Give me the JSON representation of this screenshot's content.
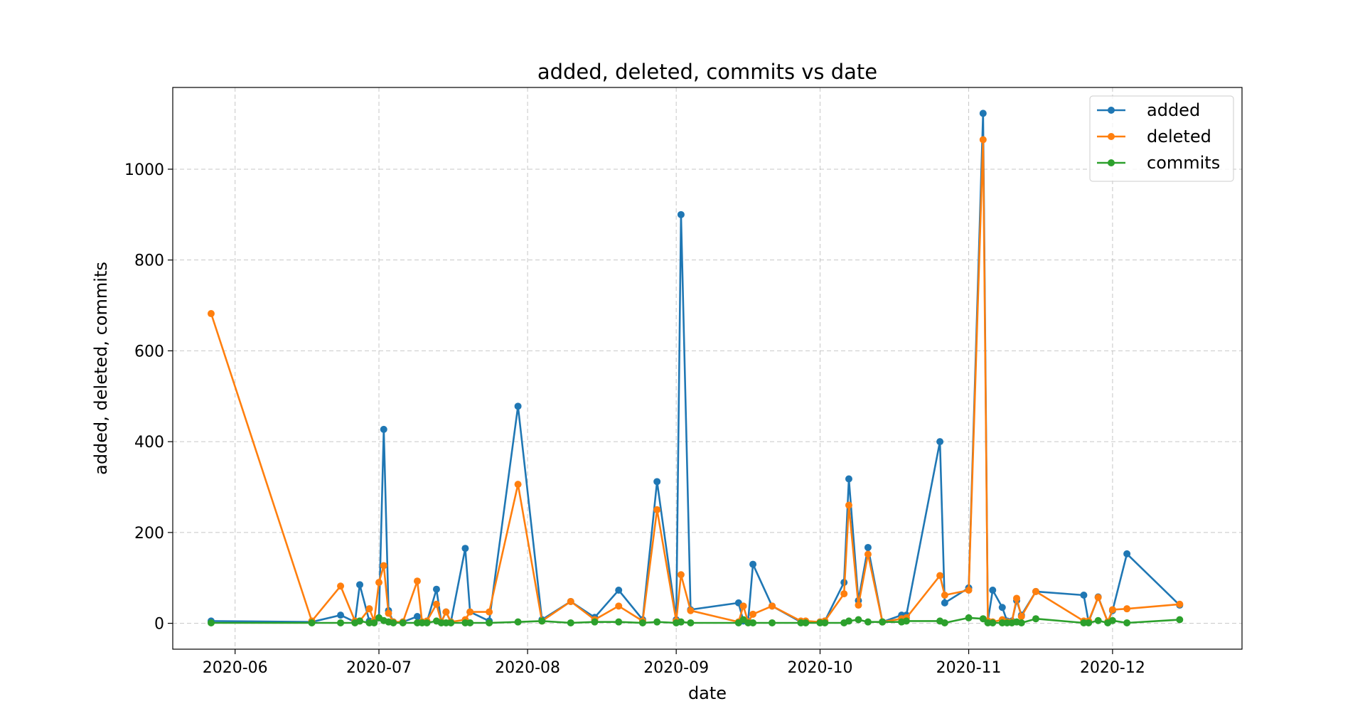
{
  "chart_data": {
    "type": "line",
    "title": "added, deleted, commits vs date",
    "xlabel": "date",
    "ylabel": "added, deleted, commits",
    "xlim": [
      "2020-05-19",
      "2020-12-28"
    ],
    "ylim": [
      -57,
      1180
    ],
    "x_ticks": [
      "2020-06-01",
      "2020-07-01",
      "2020-08-01",
      "2020-09-01",
      "2020-10-01",
      "2020-11-01",
      "2020-12-01"
    ],
    "x_tick_labels": [
      "2020-06",
      "2020-07",
      "2020-08",
      "2020-09",
      "2020-10",
      "2020-11",
      "2020-12"
    ],
    "y_ticks": [
      0,
      200,
      400,
      600,
      800,
      1000
    ],
    "grid": true,
    "legend_position": "upper right",
    "dates": [
      "2020-05-27",
      "2020-06-17",
      "2020-06-23",
      "2020-06-26",
      "2020-06-27",
      "2020-06-29",
      "2020-06-30",
      "2020-07-01",
      "2020-07-02",
      "2020-07-03",
      "2020-07-04",
      "2020-07-06",
      "2020-07-09",
      "2020-07-10",
      "2020-07-11",
      "2020-07-13",
      "2020-07-14",
      "2020-07-15",
      "2020-07-16",
      "2020-07-19",
      "2020-07-20",
      "2020-07-24",
      "2020-07-30",
      "2020-08-04",
      "2020-08-10",
      "2020-08-15",
      "2020-08-20",
      "2020-08-25",
      "2020-08-28",
      "2020-09-01",
      "2020-09-02",
      "2020-09-04",
      "2020-09-14",
      "2020-09-15",
      "2020-09-16",
      "2020-09-17",
      "2020-09-21",
      "2020-09-27",
      "2020-09-28",
      "2020-10-01",
      "2020-10-02",
      "2020-10-06",
      "2020-10-07",
      "2020-10-09",
      "2020-10-11",
      "2020-10-14",
      "2020-10-18",
      "2020-10-19",
      "2020-10-26",
      "2020-10-27",
      "2020-11-01",
      "2020-11-04",
      "2020-11-05",
      "2020-11-06",
      "2020-11-08",
      "2020-11-09",
      "2020-11-10",
      "2020-11-11",
      "2020-11-12",
      "2020-11-15",
      "2020-11-25",
      "2020-11-26",
      "2020-11-28",
      "2020-11-30",
      "2020-12-01",
      "2020-12-04",
      "2020-12-15"
    ],
    "series": [
      {
        "name": "added",
        "color": "#1f77b4",
        "values": [
          5,
          3,
          18,
          3,
          85,
          5,
          3,
          12,
          427,
          28,
          3,
          3,
          15,
          3,
          3,
          75,
          3,
          25,
          3,
          165,
          25,
          5,
          478,
          8,
          48,
          13,
          73,
          8,
          312,
          8,
          900,
          30,
          45,
          5,
          5,
          130,
          38,
          3,
          3,
          3,
          5,
          90,
          318,
          50,
          167,
          3,
          18,
          18,
          400,
          45,
          78,
          1123,
          5,
          73,
          35,
          5,
          5,
          50,
          18,
          70,
          62,
          3,
          58,
          3,
          28,
          153,
          40
        ]
      },
      {
        "name": "deleted",
        "color": "#ff7f0e",
        "values": [
          682,
          5,
          82,
          5,
          5,
          32,
          5,
          90,
          127,
          22,
          3,
          3,
          93,
          3,
          5,
          42,
          3,
          25,
          3,
          8,
          25,
          25,
          306,
          5,
          48,
          8,
          38,
          5,
          250,
          5,
          107,
          28,
          3,
          38,
          3,
          20,
          38,
          5,
          5,
          3,
          5,
          65,
          260,
          40,
          152,
          3,
          10,
          12,
          105,
          62,
          73,
          1065,
          5,
          3,
          8,
          3,
          3,
          55,
          15,
          70,
          5,
          5,
          57,
          3,
          30,
          32,
          42
        ]
      },
      {
        "name": "commits",
        "color": "#2ca02c",
        "values": [
          1,
          1,
          1,
          1,
          5,
          1,
          1,
          12,
          6,
          3,
          1,
          1,
          1,
          1,
          1,
          5,
          1,
          1,
          1,
          1,
          1,
          1,
          3,
          5,
          1,
          3,
          3,
          1,
          3,
          1,
          3,
          1,
          1,
          8,
          1,
          1,
          1,
          1,
          1,
          1,
          1,
          1,
          5,
          8,
          3,
          3,
          3,
          5,
          5,
          1,
          12,
          10,
          1,
          1,
          1,
          1,
          1,
          3,
          1,
          10,
          1,
          1,
          6,
          1,
          6,
          1,
          8
        ]
      }
    ]
  }
}
